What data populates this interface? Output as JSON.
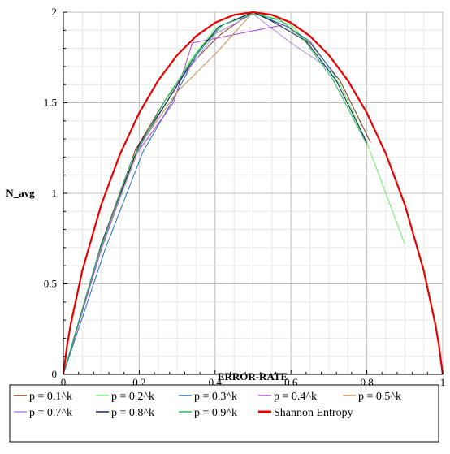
{
  "chart_data": {
    "type": "line",
    "title": "",
    "xlabel": "ERROR-RATE",
    "ylabel": "N_avg",
    "xlim": [
      0,
      1
    ],
    "ylim": [
      0,
      2
    ],
    "x_ticks": [
      0,
      0.2,
      0.4,
      0.6,
      0.8,
      1
    ],
    "x_tick_labels": [
      "0",
      "0.2",
      "0.4",
      "0.6",
      "0.8",
      "1"
    ],
    "y_ticks": [
      0,
      0.5,
      1,
      1.5,
      2
    ],
    "y_tick_labels": [
      "0",
      "0.5",
      "1",
      "1.5",
      "2"
    ],
    "grid": true,
    "legend_position": "bottom",
    "series": [
      {
        "name": "p = 0.1^k",
        "color": "#8B3A1A",
        "width": 1,
        "x": [
          0,
          0.1,
          0.19,
          0.27,
          0.34,
          0.41,
          0.47,
          0.5,
          0.53,
          0.59,
          0.65,
          0.73,
          0.81
        ],
        "y": [
          0,
          0.72,
          1.24,
          1.52,
          1.72,
          1.87,
          1.96,
          2.0,
          1.97,
          1.92,
          1.83,
          1.62,
          1.28
        ]
      },
      {
        "name": "p = 0.2^k",
        "color": "#66EE66",
        "width": 1,
        "x": [
          0,
          0.1,
          0.2,
          0.27,
          0.33,
          0.4,
          0.5,
          0.6,
          0.64,
          0.73,
          0.8,
          0.9
        ],
        "y": [
          0,
          0.7,
          1.25,
          1.5,
          1.72,
          1.91,
          2.0,
          1.93,
          1.84,
          1.6,
          1.28,
          0.72
        ]
      },
      {
        "name": "p = 0.3^k",
        "color": "#1F6FBF",
        "width": 1,
        "x": [
          0,
          0.11,
          0.21,
          0.29,
          0.35,
          0.41,
          0.5,
          0.59,
          0.65,
          0.72
        ],
        "y": [
          0,
          0.69,
          1.23,
          1.52,
          1.76,
          1.92,
          2.0,
          1.92,
          1.84,
          1.64
        ]
      },
      {
        "name": "p = 0.4^k",
        "color": "#AA44CC",
        "width": 1,
        "x": [
          0,
          0.1,
          0.19,
          0.29,
          0.34,
          0.46,
          0.58
        ],
        "y": [
          0,
          0.69,
          1.21,
          1.5,
          1.83,
          1.88,
          1.93
        ]
      },
      {
        "name": "p = 0.5^k",
        "color": "#D08A40",
        "width": 1,
        "x": [
          0,
          0.1,
          0.2,
          0.3,
          0.41,
          0.5
        ],
        "y": [
          0,
          0.72,
          1.26,
          1.56,
          1.79,
          2.0
        ]
      },
      {
        "name": "p = 0.7^k",
        "color": "#B088F0",
        "width": 1,
        "x": [
          0,
          0.1,
          0.2,
          0.3,
          0.4,
          0.5,
          0.6,
          0.7
        ],
        "y": [
          0,
          0.71,
          1.25,
          1.6,
          1.88,
          1.99,
          1.83,
          1.69
        ]
      },
      {
        "name": "p = 0.8^k",
        "color": "#10205F",
        "width": 1,
        "x": [
          0,
          0.1,
          0.2,
          0.29,
          0.35,
          0.41,
          0.5,
          0.55,
          0.6,
          0.64,
          0.72,
          0.8
        ],
        "y": [
          0,
          0.72,
          1.27,
          1.56,
          1.77,
          1.92,
          2.0,
          1.95,
          1.89,
          1.84,
          1.62,
          1.28
        ]
      },
      {
        "name": "p = 0.9^k",
        "color": "#22BB55",
        "width": 1,
        "x": [
          0,
          0.09,
          0.18,
          0.27,
          0.35,
          0.42,
          0.5,
          0.57,
          0.63,
          0.71,
          0.8
        ],
        "y": [
          0,
          0.65,
          1.18,
          1.52,
          1.77,
          1.93,
          1.99,
          1.96,
          1.86,
          1.63,
          1.27
        ]
      },
      {
        "name": "Shannon Entropy",
        "color": "#E60000",
        "width": 2.2,
        "formula": "2*H(p)",
        "x": [
          0,
          0.01,
          0.02,
          0.05,
          0.1,
          0.15,
          0.2,
          0.25,
          0.3,
          0.35,
          0.4,
          0.45,
          0.5,
          0.55,
          0.6,
          0.65,
          0.7,
          0.75,
          0.8,
          0.85,
          0.9,
          0.95,
          0.98,
          0.99,
          1
        ],
        "y": [
          0,
          0.162,
          0.283,
          0.573,
          0.938,
          1.219,
          1.444,
          1.623,
          1.763,
          1.868,
          1.942,
          1.985,
          2.0,
          1.985,
          1.942,
          1.868,
          1.763,
          1.623,
          1.444,
          1.219,
          0.938,
          0.573,
          0.283,
          0.162,
          0
        ]
      }
    ]
  }
}
